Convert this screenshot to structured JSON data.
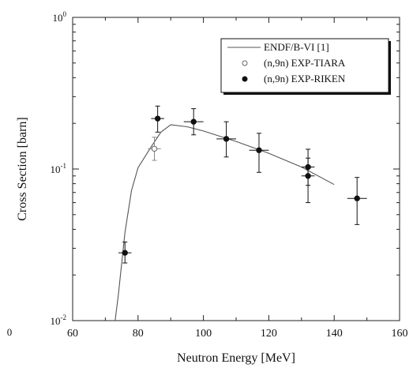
{
  "chart_data": {
    "type": "scatter",
    "title": "",
    "xlabel": "Neutron Energy [MeV]",
    "ylabel": "Cross Section [barn]",
    "xlim": [
      60,
      160
    ],
    "ylim": [
      0.01,
      1
    ],
    "yscale": "log",
    "grid": false,
    "legend_position": "top-right",
    "x_ticks": [
      {
        "value": 60,
        "label": "60"
      },
      {
        "value": 80,
        "label": "80"
      },
      {
        "value": 100,
        "label": "100"
      },
      {
        "value": 120,
        "label": "120"
      },
      {
        "value": 140,
        "label": "140"
      },
      {
        "value": 160,
        "label": "160"
      }
    ],
    "y_ticks": [
      {
        "value": 0.01,
        "base": "10",
        "exp": "-2"
      },
      {
        "value": 0.1,
        "base": "10",
        "exp": "-1"
      },
      {
        "value": 1,
        "base": "10",
        "exp": "0"
      }
    ],
    "stray_label": "0",
    "series": [
      {
        "name": "ENDF/B-VI [1]",
        "kind": "line",
        "x": [
          73,
          74,
          76,
          78,
          80,
          84,
          87,
          90,
          95,
          100,
          110,
          120,
          130,
          140
        ],
        "y": [
          0.01,
          0.015,
          0.038,
          0.072,
          0.102,
          0.14,
          0.175,
          0.196,
          0.19,
          0.178,
          0.152,
          0.127,
          0.103,
          0.079
        ]
      },
      {
        "name": "(n,9n) EXP-TIARA",
        "kind": "open-circle",
        "points": [
          {
            "x": 85,
            "y": 0.136,
            "xerr": 2,
            "ylo": 0.114,
            "yhi": 0.162
          }
        ]
      },
      {
        "name": "(n,9n) EXP-RIKEN",
        "kind": "filled-circle",
        "points": [
          {
            "x": 76,
            "y": 0.028,
            "xerr": 2,
            "ylo": 0.024,
            "yhi": 0.033
          },
          {
            "x": 86,
            "y": 0.215,
            "xerr": 2,
            "ylo": 0.175,
            "yhi": 0.26
          },
          {
            "x": 97,
            "y": 0.205,
            "xerr": 3,
            "ylo": 0.168,
            "yhi": 0.25
          },
          {
            "x": 107,
            "y": 0.158,
            "xerr": 3,
            "ylo": 0.12,
            "yhi": 0.205
          },
          {
            "x": 117,
            "y": 0.133,
            "xerr": 3,
            "ylo": 0.095,
            "yhi": 0.172
          },
          {
            "x": 132,
            "y": 0.103,
            "xerr": 2,
            "ylo": 0.078,
            "yhi": 0.135
          },
          {
            "x": 132,
            "y": 0.09,
            "xerr": 2,
            "ylo": 0.06,
            "yhi": 0.118
          },
          {
            "x": 147,
            "y": 0.064,
            "xerr": 3,
            "ylo": 0.043,
            "yhi": 0.088
          }
        ]
      }
    ]
  }
}
